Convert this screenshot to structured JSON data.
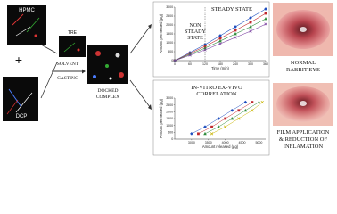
{
  "left": {
    "hpmc": "HPMC",
    "plus": "+",
    "dcp": "DCP",
    "tre": "TRE",
    "solvent_casting": [
      "SOLVENT",
      "CASTING"
    ],
    "docked_complex": [
      "DOCKED",
      "COMPLEX"
    ]
  },
  "permeation_chart": {
    "type": "line",
    "annotation_steady": "STEADY STATE",
    "annotation_non_steady": [
      "NON",
      "STEADY",
      "STATE"
    ],
    "xlabel": "Time (min)",
    "ylabel": "Amount permeated (µg)",
    "x": [
      0,
      60,
      120,
      180,
      240,
      300,
      360
    ],
    "xlim": [
      0,
      360
    ],
    "xticks": [
      0,
      60,
      120,
      180,
      240,
      300,
      360
    ],
    "ylim": [
      0,
      3000
    ],
    "yticks": [
      0,
      500,
      1000,
      1500,
      2000,
      2500,
      3000
    ],
    "series": [
      {
        "color": "#1f4fbf",
        "values": [
          0,
          450,
          900,
          1400,
          1900,
          2400,
          2900
        ]
      },
      {
        "color": "#c0282d",
        "values": [
          0,
          400,
          800,
          1250,
          1700,
          2150,
          2650
        ]
      },
      {
        "color": "#2e8b3a",
        "values": [
          0,
          350,
          700,
          1100,
          1500,
          1900,
          2350
        ]
      },
      {
        "color": "#7a3fa0",
        "values": [
          0,
          300,
          600,
          950,
          1300,
          1650,
          2050
        ]
      }
    ]
  },
  "correlation_chart": {
    "type": "scatter",
    "title": [
      "IN-VITRO EX-VIVO",
      "CORRELATION"
    ],
    "xlabel": "Amount released (µg)",
    "ylabel": "Amount permeated (µg)",
    "xlim": [
      2500,
      5200
    ],
    "xticks": [
      3000,
      3500,
      4000,
      4500,
      5000
    ],
    "ylim": [
      0,
      3000
    ],
    "yticks": [
      0,
      500,
      1000,
      1500,
      2000,
      2500,
      3000
    ],
    "series": [
      {
        "color": "#1f4fbf",
        "x": [
          3000,
          3400,
          3800,
          4200,
          4600
        ],
        "values": [
          400,
          900,
          1500,
          2100,
          2700
        ]
      },
      {
        "color": "#c0282d",
        "x": [
          3200,
          3600,
          4000,
          4400,
          4800
        ],
        "values": [
          400,
          900,
          1500,
          2100,
          2700
        ]
      },
      {
        "color": "#2e8b3a",
        "x": [
          3400,
          3800,
          4200,
          4600,
          5000
        ],
        "values": [
          400,
          900,
          1500,
          2100,
          2700
        ]
      },
      {
        "color": "#c8b400",
        "x": [
          3600,
          4000,
          4400,
          4800,
          5100
        ],
        "values": [
          400,
          900,
          1500,
          2100,
          2700
        ]
      }
    ]
  },
  "right": {
    "normal_eye": [
      "NORMAL",
      "RABBIT EYE"
    ],
    "treated_eye": [
      "FILM APPLICATION",
      "& REDUCTION OF",
      "INFLAMATION"
    ]
  }
}
